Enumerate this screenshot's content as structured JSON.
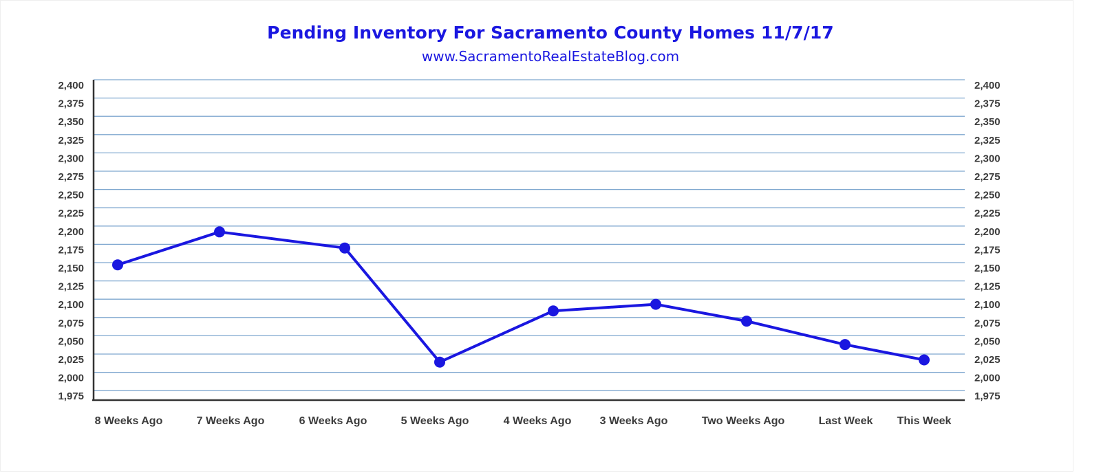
{
  "chart_data": {
    "type": "line",
    "title": "Pending Inventory For Sacramento County Homes 11/7/17",
    "subtitle": "www.SacramentoRealEstateBlog.com",
    "categories": [
      "8 Weeks Ago",
      "7 Weeks Ago",
      "6 Weeks Ago",
      "5 Weeks Ago",
      "4 Weeks Ago",
      "3 Weeks Ago",
      "Two Weeks Ago",
      "Last Week",
      "This Week"
    ],
    "series": [
      {
        "values": [
          2147,
          2192,
          2170,
          2014,
          2084,
          2093,
          2070,
          2038,
          2017
        ]
      }
    ],
    "ylim": [
      1975,
      2400
    ],
    "yticks": [
      "2,400",
      "2,375",
      "2,350",
      "2,325",
      "2,300",
      "2,275",
      "2,250",
      "2,225",
      "2,200",
      "2,175",
      "2,150",
      "2,125",
      "2,100",
      "2,075",
      "2,050",
      "2,025",
      "2,000",
      "1,975"
    ],
    "ytick_values": [
      2400,
      2375,
      2350,
      2325,
      2300,
      2275,
      2250,
      2225,
      2200,
      2175,
      2150,
      2125,
      2100,
      2075,
      2050,
      2025,
      2000,
      1975
    ],
    "secondary_y_axis": true,
    "grid": true,
    "colors": {
      "line": "#1a17e0",
      "grid": "#7fa7cf",
      "axis": "#333333"
    }
  }
}
